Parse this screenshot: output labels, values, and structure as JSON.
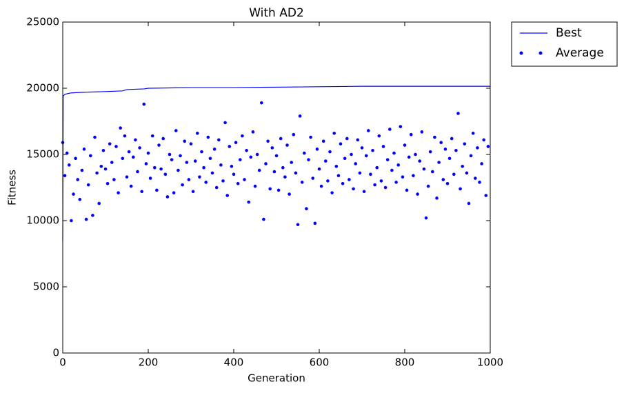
{
  "chart_data": {
    "type": "line",
    "title": "With AD2",
    "x_label": "Generation",
    "y_label": "Fitness",
    "xlim": [
      0,
      1000
    ],
    "ylim": [
      0,
      25000
    ],
    "xticks": [
      0,
      200,
      400,
      600,
      800,
      1000
    ],
    "yticks": [
      0,
      5000,
      10000,
      15000,
      20000,
      25000
    ],
    "grid": false,
    "legend": "outside-upper-right",
    "series": [
      {
        "name": "Best",
        "mode": "line",
        "color": "#0000ff",
        "x": [
          0,
          1,
          5,
          20,
          50,
          100,
          140,
          150,
          190,
          200,
          300,
          400,
          560,
          700,
          1000
        ],
        "values": [
          8500,
          19400,
          19550,
          19650,
          19700,
          19750,
          19800,
          19900,
          19950,
          20000,
          20050,
          20050,
          20100,
          20150,
          20150
        ]
      },
      {
        "name": "Average",
        "mode": "points",
        "color": "#0000ff",
        "x": [
          0,
          5,
          10,
          15,
          20,
          25,
          30,
          35,
          40,
          45,
          50,
          55,
          60,
          65,
          70,
          75,
          80,
          85,
          90,
          95,
          100,
          105,
          110,
          115,
          120,
          125,
          130,
          135,
          140,
          145,
          150,
          155,
          160,
          165,
          170,
          175,
          180,
          185,
          190,
          195,
          200,
          205,
          210,
          215,
          220,
          225,
          230,
          235,
          240,
          245,
          250,
          255,
          260,
          265,
          270,
          275,
          280,
          285,
          290,
          295,
          300,
          305,
          310,
          315,
          320,
          325,
          330,
          335,
          340,
          345,
          350,
          355,
          360,
          365,
          370,
          375,
          380,
          385,
          390,
          395,
          400,
          405,
          410,
          415,
          420,
          425,
          430,
          435,
          440,
          445,
          450,
          455,
          460,
          465,
          470,
          475,
          480,
          485,
          490,
          495,
          500,
          505,
          510,
          515,
          520,
          525,
          530,
          535,
          540,
          545,
          550,
          555,
          560,
          565,
          570,
          575,
          580,
          585,
          590,
          595,
          600,
          605,
          610,
          615,
          620,
          625,
          630,
          635,
          640,
          645,
          650,
          655,
          660,
          665,
          670,
          675,
          680,
          685,
          690,
          695,
          700,
          705,
          710,
          715,
          720,
          725,
          730,
          735,
          740,
          745,
          750,
          755,
          760,
          765,
          770,
          775,
          780,
          785,
          790,
          795,
          800,
          805,
          810,
          815,
          820,
          825,
          830,
          835,
          840,
          845,
          850,
          855,
          860,
          865,
          870,
          875,
          880,
          885,
          890,
          895,
          900,
          905,
          910,
          915,
          920,
          925,
          930,
          935,
          940,
          945,
          950,
          955,
          960,
          965,
          970,
          975,
          980,
          985,
          990,
          995
        ],
        "values": [
          15900,
          13400,
          15100,
          14200,
          10000,
          12000,
          14700,
          13100,
          11600,
          13800,
          15400,
          10100,
          12700,
          14900,
          10400,
          16300,
          13600,
          11300,
          14100,
          15300,
          13900,
          12800,
          15800,
          14400,
          13100,
          15600,
          12100,
          17000,
          14700,
          16400,
          13300,
          15200,
          12600,
          14800,
          16100,
          13700,
          15500,
          12200,
          18800,
          14300,
          15100,
          13200,
          16400,
          14000,
          12300,
          15700,
          13900,
          16200,
          13500,
          11800,
          15000,
          14600,
          12100,
          16800,
          13800,
          14900,
          12700,
          16000,
          14400,
          13100,
          15800,
          12200,
          14500,
          16600,
          13300,
          15200,
          14000,
          12900,
          16300,
          14700,
          13600,
          15400,
          12500,
          16100,
          14200,
          13000,
          17400,
          11900,
          15600,
          14100,
          13500,
          15900,
          12800,
          14600,
          16400,
          13100,
          15300,
          11400,
          14800,
          16700,
          12600,
          15000,
          13800,
          18900,
          10100,
          14300,
          16000,
          12400,
          15500,
          13700,
          14900,
          12300,
          16200,
          14000,
          13300,
          15700,
          12000,
          14400,
          16500,
          13600,
          9700,
          17900,
          12900,
          15100,
          10900,
          14600,
          16300,
          13200,
          9800,
          15400,
          13900,
          12600,
          16000,
          14500,
          13000,
          15200,
          12100,
          16600,
          14100,
          13400,
          15800,
          12800,
          14700,
          16200,
          13100,
          15000,
          12400,
          14300,
          16100,
          13600,
          15500,
          12200,
          14900,
          16800,
          13500,
          15300,
          12700,
          14000,
          16400,
          13000,
          15600,
          12500,
          14600,
          16900,
          13800,
          15100,
          12900,
          14200,
          17100,
          13300,
          15700,
          12300,
          14800,
          16500,
          13400,
          15000,
          12000,
          14500,
          16700,
          13900,
          10200,
          12600,
          15200,
          13700,
          16300,
          11700,
          14400,
          15900,
          13100,
          15400,
          12800,
          14700,
          16200,
          13500,
          15300,
          18100,
          12400,
          14100,
          15800,
          13600,
          11300,
          14900,
          16600,
          13200,
          15500,
          12900,
          14300,
          16100,
          11900,
          15600
        ]
      }
    ]
  }
}
